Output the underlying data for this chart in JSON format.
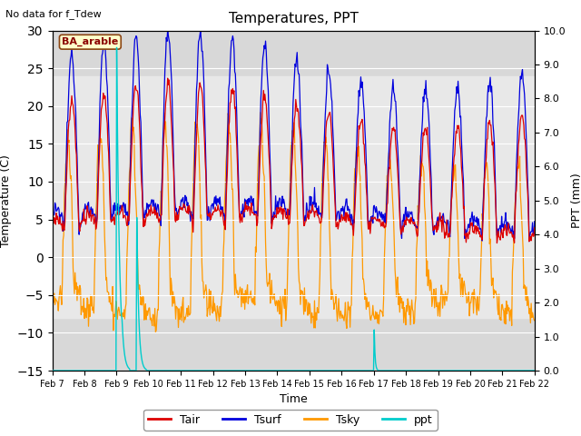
{
  "title": "Temperatures, PPT",
  "subtitle": "No data for f_Tdew",
  "xlabel": "Time",
  "ylabel_left": "Temperature (C)",
  "ylabel_right": "PPT (mm)",
  "legend_label": "BA_arable",
  "ylim_left": [
    -15,
    30
  ],
  "ylim_right": [
    0.0,
    10.0
  ],
  "yticks_left": [
    -15,
    -10,
    -5,
    0,
    5,
    10,
    15,
    20,
    25,
    30
  ],
  "yticks_right": [
    0.0,
    1.0,
    2.0,
    3.0,
    4.0,
    5.0,
    6.0,
    7.0,
    8.0,
    9.0,
    10.0
  ],
  "colors": {
    "Tair": "#dd0000",
    "Tsurf": "#0000dd",
    "Tsky": "#ff9900",
    "ppt": "#00cccc",
    "plot_bg": "#d8d8d8",
    "band_bg": "#e8e8e8"
  },
  "xtick_labels": [
    "Feb 7",
    "Feb 8",
    "Feb 9",
    "Feb 10",
    "Feb 11",
    "Feb 12",
    "Feb 13",
    "Feb 14",
    "Feb 15",
    "Feb 16",
    "Feb 17",
    "Feb 18",
    "Feb 19",
    "Feb 20",
    "Feb 21",
    "Feb 22"
  ],
  "n_points": 720,
  "n_days": 15
}
